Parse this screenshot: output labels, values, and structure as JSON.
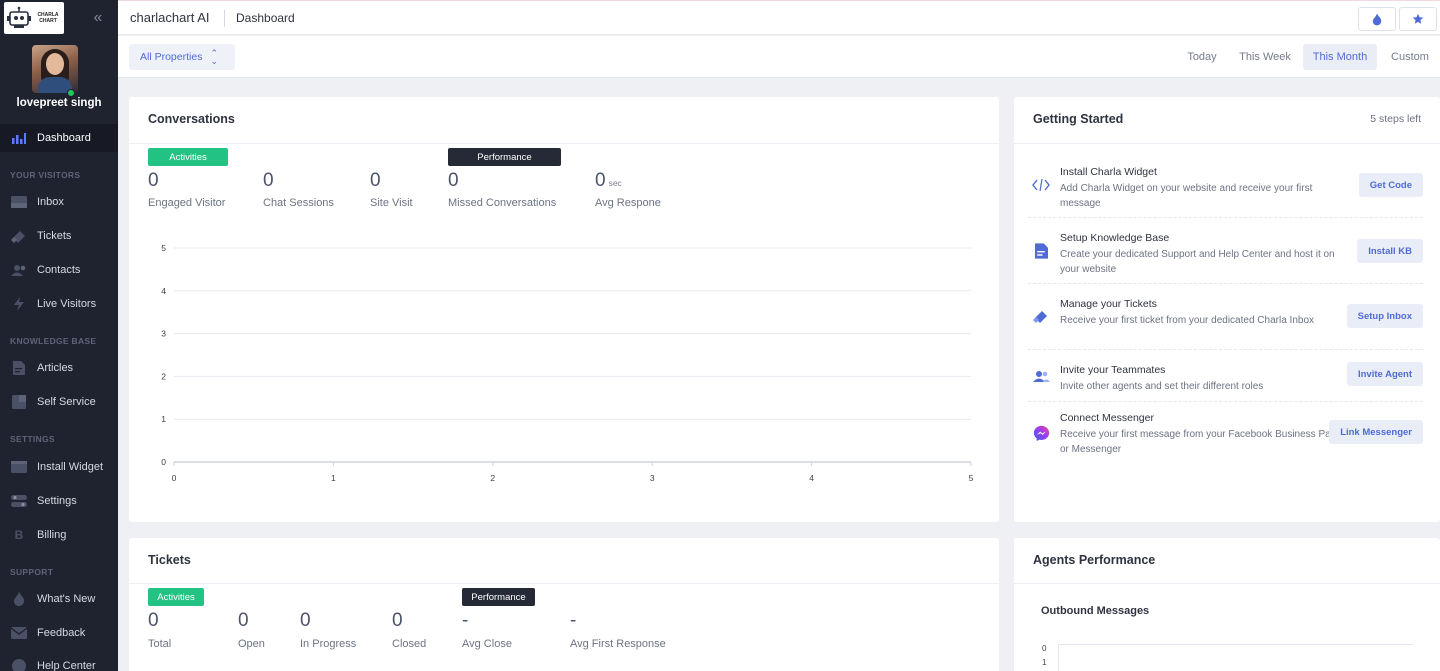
{
  "sidebar": {
    "logo_text": "CHARLA CHART",
    "user_name": "lovepreet singh",
    "items": [
      {
        "label": "Dashboard",
        "icon": "bar-chart-icon"
      },
      {
        "label": "Inbox",
        "icon": "inbox-icon"
      },
      {
        "label": "Tickets",
        "icon": "ticket-icon"
      },
      {
        "label": "Contacts",
        "icon": "contacts-icon"
      },
      {
        "label": "Live Visitors",
        "icon": "live-visitors-icon"
      },
      {
        "label": "Articles",
        "icon": "article-icon"
      },
      {
        "label": "Self Service",
        "icon": "self-service-icon"
      },
      {
        "label": "Install Widget",
        "icon": "widget-icon"
      },
      {
        "label": "Settings",
        "icon": "settings-icon"
      },
      {
        "label": "Billing",
        "icon": "billing-icon"
      },
      {
        "label": "What's New",
        "icon": "flame-icon"
      },
      {
        "label": "Feedback",
        "icon": "mail-icon"
      },
      {
        "label": "Help Center",
        "icon": "help-icon"
      }
    ],
    "sections": [
      "YOUR VISITORS",
      "KNOWLEDGE BASE",
      "SETTINGS",
      "SUPPORT"
    ]
  },
  "topbar": {
    "app_name": "charlachart AI",
    "breadcrumb": "Dashboard"
  },
  "filter": {
    "property": "All Properties",
    "ranges": [
      "Today",
      "This Week",
      "This Month",
      "Custom"
    ],
    "active_range": "This Month"
  },
  "conversations": {
    "title": "Conversations",
    "activities_label": "Activities",
    "performance_label": "Performance",
    "stats": [
      {
        "value": "0",
        "label": "Engaged Visitor"
      },
      {
        "value": "0",
        "label": "Chat Sessions"
      },
      {
        "value": "0",
        "label": "Site Visit"
      },
      {
        "value": "0",
        "label": "Missed Conversations"
      },
      {
        "value": "0",
        "unit": "sec",
        "label": "Avg Respone"
      }
    ]
  },
  "chart_data": {
    "type": "line",
    "x": [],
    "series": [],
    "x_ticks": [
      "0",
      "1",
      "2",
      "3",
      "4",
      "5"
    ],
    "y_ticks": [
      "0",
      "1",
      "2",
      "3",
      "4",
      "5"
    ],
    "xlim": [
      0,
      5
    ],
    "ylim": [
      0,
      5
    ],
    "grid": true
  },
  "tickets": {
    "title": "Tickets",
    "activities_label": "Activities",
    "performance_label": "Performance",
    "stats": [
      {
        "value": "0",
        "label": "Total"
      },
      {
        "value": "0",
        "label": "Open"
      },
      {
        "value": "0",
        "label": "In Progress"
      },
      {
        "value": "0",
        "label": "Closed"
      },
      {
        "value": "-",
        "label": "Avg Close"
      },
      {
        "value": "-",
        "label": "Avg First Response"
      }
    ]
  },
  "getting_started": {
    "title": "Getting Started",
    "steps_left": "5 steps left",
    "steps": [
      {
        "title": "Install Charla Widget",
        "desc": "Add Charla Widget on your website and receive your first message",
        "button": "Get Code",
        "icon": "code-icon"
      },
      {
        "title": "Setup Knowledge Base",
        "desc": "Create your dedicated Support and Help Center and host it on your website",
        "button": "Install KB",
        "icon": "document-icon"
      },
      {
        "title": "Manage your Tickets",
        "desc": "Receive your first ticket from your dedicated Charla Inbox",
        "button": "Setup Inbox",
        "icon": "ticket-icon"
      },
      {
        "title": "Invite your Teammates",
        "desc": "Invite other agents and set their different roles",
        "button": "Invite Agent",
        "icon": "team-icon"
      },
      {
        "title": "Connect Messenger",
        "desc": "Receive your first message from your Facebook Business Page or Messenger",
        "button": "Link Messenger",
        "icon": "messenger-icon"
      }
    ]
  },
  "agents": {
    "title": "Agents Performance",
    "subtitle": "Outbound Messages",
    "y_ticks": [
      "0",
      "1"
    ]
  },
  "colors": {
    "sidebar_bg": "#1f2330",
    "accent": "#4f6bd6",
    "activities_green": "#22c382",
    "performance_dark": "#262a36"
  }
}
